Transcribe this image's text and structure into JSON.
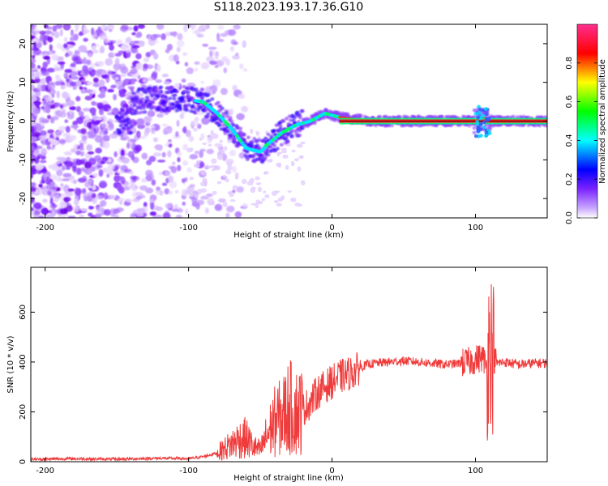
{
  "title": "S118.2023.193.17.36.G10",
  "colors": {
    "snr_line": "#ef3b3b",
    "axis": "#000000"
  },
  "chart_data": [
    {
      "type": "heatmap",
      "xlabel": "Height of straight line (km)",
      "ylabel": "Frequency (Hz)",
      "xlim": [
        -210,
        150
      ],
      "ylim": [
        -25,
        25
      ],
      "xticks": [
        -200,
        -100,
        0,
        100
      ],
      "yticks": [
        -20,
        -10,
        0,
        10,
        20
      ],
      "colorbar": {
        "label": "Normalized spectral amplitude",
        "range": [
          0,
          1
        ],
        "ticks": [
          "0.0",
          "0.2",
          "0.4",
          "0.6",
          "0.8"
        ],
        "colormap": [
          "#ffffff",
          "#9b4dff",
          "#0000ff",
          "#00ffff",
          "#00ff00",
          "#ffff00",
          "#ff0000",
          "#ff33aa"
        ]
      },
      "ridge": {
        "description_points_x": [
          -140,
          -110,
          -90,
          -80,
          -70,
          -60,
          -50,
          -45,
          -35,
          -25,
          -15,
          -5,
          5,
          30,
          60,
          90,
          100,
          105,
          110,
          130,
          150
        ],
        "description_points_y": [
          5,
          6,
          5,
          2,
          -2,
          -7,
          -8,
          -6,
          -3,
          -1,
          0,
          2,
          1,
          0,
          0,
          0,
          0,
          1,
          0,
          0,
          0
        ]
      }
    },
    {
      "type": "line",
      "xlabel": "Height of straight line (km)",
      "ylabel": "SNR (10 * v/v)",
      "xlim": [
        -210,
        150
      ],
      "ylim": [
        0,
        780
      ],
      "xticks": [
        -200,
        -100,
        0,
        100
      ],
      "yticks": [
        0,
        200,
        400,
        600
      ],
      "series": [
        {
          "x": [
            -210,
            -180,
            -150,
            -120,
            -100,
            -90,
            -80,
            -70,
            -65,
            -60,
            -55,
            -50,
            -45,
            -40,
            -35,
            -30,
            -25,
            -20,
            -15,
            -10,
            -5,
            0,
            5,
            10,
            15,
            20,
            25,
            30,
            40,
            50,
            60,
            70,
            80,
            90,
            95,
            100,
            105,
            108,
            110,
            112,
            115,
            120,
            130,
            140,
            150
          ],
          "y": [
            10,
            12,
            10,
            14,
            12,
            20,
            35,
            70,
            90,
            95,
            60,
            45,
            110,
            160,
            180,
            220,
            200,
            210,
            240,
            280,
            300,
            320,
            340,
            350,
            360,
            380,
            390,
            395,
            400,
            405,
            400,
            395,
            390,
            395,
            400,
            410,
            420,
            380,
            500,
            420,
            395,
            400,
            390,
            395,
            395
          ]
        }
      ]
    }
  ]
}
